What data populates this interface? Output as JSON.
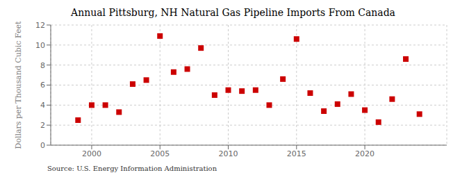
{
  "chart_data": {
    "type": "scatter",
    "title": "Annual Pittsburg, NH Natural Gas Pipeline Imports From Canada",
    "ylabel": "Dollars per Thousand Cubic Feet",
    "annotations": [
      "Source: U.S. Energy Information Administration"
    ],
    "x": [
      1999,
      2000,
      2001,
      2002,
      2003,
      2004,
      2005,
      2006,
      2007,
      2008,
      2009,
      2010,
      2011,
      2012,
      2013,
      2014,
      2015,
      2016,
      2017,
      2018,
      2019,
      2020,
      2021,
      2022,
      2023,
      2024
    ],
    "values": [
      2.5,
      4.0,
      4.0,
      3.3,
      6.1,
      6.5,
      10.9,
      7.3,
      7.6,
      9.7,
      5.0,
      5.5,
      5.4,
      5.5,
      4.0,
      6.6,
      10.6,
      5.2,
      3.4,
      4.1,
      5.1,
      3.5,
      2.3,
      4.6,
      8.6,
      3.1
    ],
    "color": "#cc0000",
    "marker": "square",
    "xlim": [
      1997,
      2026
    ],
    "ylim": [
      0,
      12
    ],
    "xticks": [
      2000,
      2005,
      2010,
      2015,
      2020
    ],
    "yticks": [
      0,
      2,
      4,
      6,
      8,
      10,
      12
    ],
    "grid": true
  }
}
